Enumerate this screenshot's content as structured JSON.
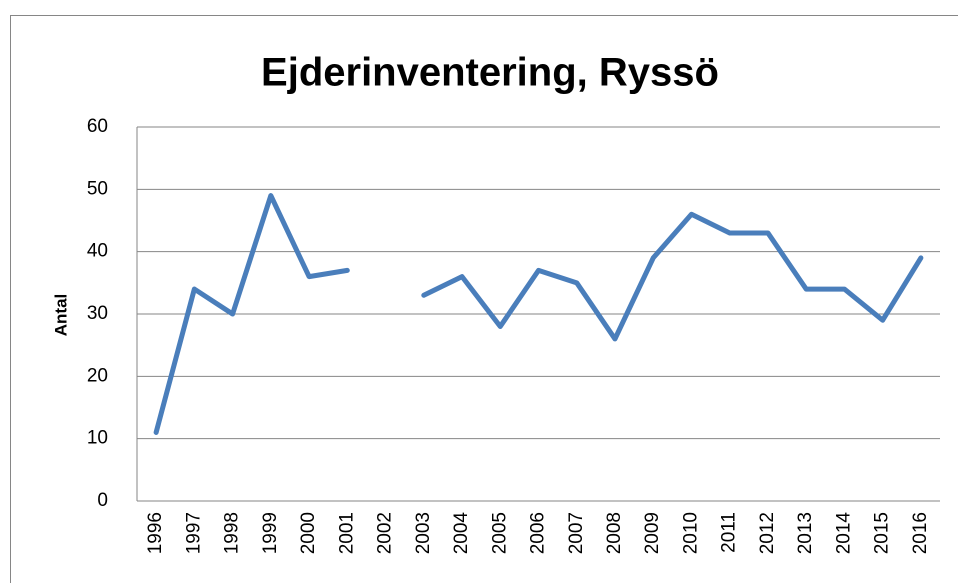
{
  "chart_data": {
    "type": "line",
    "title": "Ejderinventering, Ryssö",
    "y_label": "Antal",
    "categories": [
      "1996",
      "1997",
      "1998",
      "1999",
      "2000",
      "2001",
      "2002",
      "2003",
      "2004",
      "2005",
      "2006",
      "2007",
      "2008",
      "2009",
      "2010",
      "2011",
      "2012",
      "2013",
      "2014",
      "2015",
      "2016"
    ],
    "series": [
      {
        "name": "Antal",
        "color": "#4a7ebb",
        "values": [
          11,
          34,
          30,
          49,
          36,
          37,
          null,
          33,
          36,
          28,
          37,
          35,
          26,
          39,
          46,
          43,
          43,
          34,
          34,
          29,
          39
        ]
      }
    ],
    "ylim": [
      0,
      60
    ],
    "yticks": [
      0,
      10,
      20,
      30,
      40,
      50,
      60
    ],
    "grid": true,
    "legend": false
  }
}
